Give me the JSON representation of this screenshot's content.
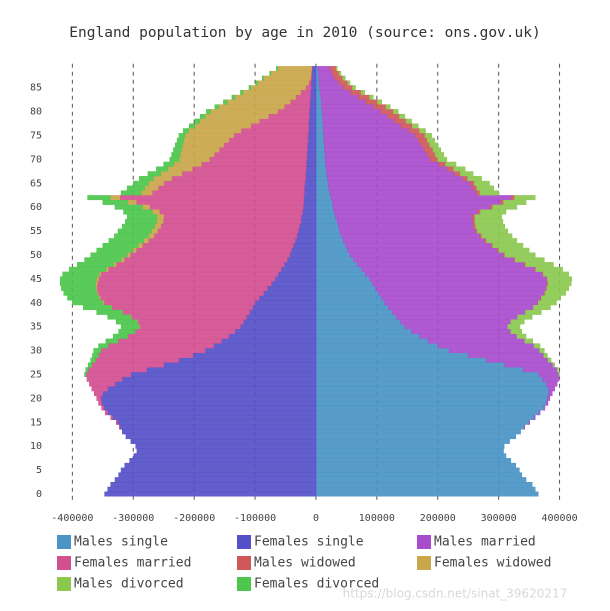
{
  "chart_data": {
    "type": "bar",
    "orientation": "horizontal",
    "barmode": "relative",
    "title": "England population by age in 2010 (source: ons.gov.uk)",
    "categories": [
      "0",
      null,
      null,
      null,
      null,
      "5",
      null,
      null,
      null,
      null,
      "10",
      null,
      null,
      null,
      null,
      "15",
      null,
      null,
      null,
      null,
      "20",
      null,
      null,
      null,
      null,
      "25",
      null,
      null,
      null,
      null,
      "30",
      null,
      null,
      null,
      null,
      "35",
      null,
      null,
      null,
      null,
      "40",
      null,
      null,
      null,
      null,
      "45",
      null,
      null,
      null,
      null,
      "50",
      null,
      null,
      null,
      null,
      "55",
      null,
      null,
      null,
      null,
      "60",
      null,
      null,
      null,
      null,
      "65",
      null,
      null,
      null,
      null,
      "70",
      null,
      null,
      null,
      null,
      "75",
      null,
      null,
      null,
      null,
      "80",
      null,
      null,
      null,
      null,
      "85",
      null,
      null,
      null,
      null
    ],
    "xlim": [
      -440000,
      450000
    ],
    "xticks": [
      -400000,
      -300000,
      -200000,
      -100000,
      0,
      100000,
      200000,
      300000,
      400000
    ],
    "grid": true,
    "series": [
      {
        "name": "Males single",
        "color": "#4a94c6",
        "values": [
          365000,
          360000,
          355000,
          345000,
          338000,
          334000,
          328000,
          320000,
          312000,
          308000,
          309000,
          318000,
          328000,
          336000,
          342000,
          350000,
          358000,
          366000,
          374000,
          378000,
          380000,
          382000,
          382000,
          378000,
          372000,
          366000,
          340000,
          310000,
          280000,
          250000,
          219000,
          200000,
          184000,
          170000,
          157000,
          146000,
          139000,
          132000,
          125000,
          119000,
          113000,
          108000,
          103000,
          98000,
          93000,
          88000,
          81000,
          75000,
          68000,
          62000,
          56000,
          52000,
          49000,
          45000,
          42000,
          39000,
          37000,
          35000,
          32000,
          30000,
          28000,
          27000,
          25000,
          23000,
          21000,
          20000,
          19000,
          18000,
          17000,
          16000,
          15000,
          15000,
          14000,
          14000,
          13000,
          13000,
          12000,
          12000,
          11000,
          11000,
          10000,
          9000,
          9000,
          8000,
          7000,
          6000,
          5000,
          5000,
          4000,
          3000
        ]
      },
      {
        "name": "Females single",
        "color": "#5550c8",
        "values": [
          -347000,
          -342000,
          -337000,
          -330000,
          -324000,
          -320000,
          -314000,
          -306000,
          -299000,
          -294000,
          -296000,
          -304000,
          -312000,
          -318000,
          -322000,
          -326000,
          -334000,
          -342000,
          -348000,
          -352000,
          -353000,
          -350000,
          -342000,
          -330000,
          -318000,
          -304000,
          -278000,
          -250000,
          -225000,
          -202000,
          -182000,
          -168000,
          -155000,
          -143000,
          -133000,
          -124000,
          -119000,
          -114000,
          -109000,
          -104000,
          -100000,
          -93000,
          -86000,
          -80000,
          -73000,
          -67000,
          -62000,
          -57000,
          -52000,
          -47000,
          -43000,
          -40000,
          -37000,
          -34000,
          -31000,
          -29000,
          -27000,
          -25000,
          -24000,
          -22000,
          -21000,
          -20000,
          -20000,
          -19000,
          -19000,
          -18000,
          -17000,
          -17000,
          -16000,
          -16000,
          -15000,
          -15000,
          -14000,
          -14000,
          -13000,
          -13000,
          -12000,
          -12000,
          -12000,
          -11000,
          -11000,
          -10000,
          -10000,
          -9000,
          -9000,
          -8000,
          -8000,
          -7000,
          -7000,
          -6000
        ]
      },
      {
        "name": "Males married",
        "color": "#a84ccc",
        "values": [
          0,
          0,
          0,
          0,
          0,
          0,
          0,
          0,
          0,
          0,
          0,
          0,
          0,
          0,
          1000,
          1000,
          2000,
          2000,
          2000,
          3000,
          4000,
          6000,
          10000,
          18000,
          27000,
          33000,
          56000,
          79000,
          101000,
          124000,
          148000,
          158000,
          159000,
          160000,
          163000,
          169000,
          181000,
          199000,
          219000,
          238000,
          251000,
          261000,
          272000,
          280000,
          287000,
          291000,
          291000,
          284000,
          274000,
          263000,
          252000,
          246000,
          239000,
          232000,
          227000,
          223000,
          222000,
          223000,
          225000,
          236000,
          258000,
          276000,
          296000,
          240000,
          237000,
          233000,
          222000,
          210000,
          199000,
          186000,
          173000,
          168000,
          164000,
          159000,
          155000,
          150000,
          141000,
          128000,
          118000,
          107000,
          97000,
          86000,
          73000,
          62000,
          50000,
          39000,
          33000,
          26000,
          23000,
          20000
        ]
      },
      {
        "name": "Females married",
        "color": "#d24f90",
        "values": [
          0,
          0,
          0,
          0,
          0,
          0,
          0,
          0,
          0,
          0,
          0,
          0,
          0,
          0,
          -1000,
          -2000,
          -3000,
          -4000,
          -4000,
          -5000,
          -7000,
          -14000,
          -26000,
          -42000,
          -58000,
          -74000,
          -96000,
          -118000,
          -137000,
          -155000,
          -171000,
          -173000,
          -170000,
          -166000,
          -164000,
          -165000,
          -174000,
          -189000,
          -208000,
          -231000,
          -248000,
          -261000,
          -272000,
          -280000,
          -286000,
          -290000,
          -291000,
          -284000,
          -276000,
          -268000,
          -262000,
          -255000,
          -248000,
          -241000,
          -235000,
          -231000,
          -228000,
          -226000,
          -226000,
          -235000,
          -252000,
          -275000,
          -302000,
          -250000,
          -240000,
          -232000,
          -220000,
          -203000,
          -187000,
          -172000,
          -160000,
          -152000,
          -145000,
          -137000,
          -130000,
          -122000,
          -111000,
          -95000,
          -81000,
          -67000,
          -52000,
          -42000,
          -32000,
          -24000,
          -16000,
          -9000,
          -4000,
          -2000,
          -1000,
          -1000
        ]
      },
      {
        "name": "Males widowed",
        "color": "#d05858",
        "values": [
          0,
          0,
          0,
          0,
          0,
          0,
          0,
          0,
          0,
          0,
          0,
          0,
          0,
          0,
          0,
          0,
          0,
          0,
          0,
          0,
          0,
          0,
          0,
          0,
          0,
          0,
          0,
          0,
          0,
          0,
          0,
          0,
          0,
          0,
          0,
          0,
          0,
          0,
          0,
          0,
          1000,
          1000,
          1000,
          1000,
          1000,
          1000,
          1000,
          2000,
          2000,
          2000,
          2000,
          2000,
          2000,
          3000,
          3000,
          3000,
          3000,
          3000,
          4000,
          4000,
          4000,
          5000,
          5000,
          6000,
          6000,
          7000,
          8000,
          9000,
          10000,
          11000,
          12000,
          13000,
          14000,
          14000,
          15000,
          16000,
          17000,
          18000,
          19000,
          19000,
          20000,
          20000,
          19000,
          18000,
          17000,
          15000,
          14000,
          13000,
          11000,
          10000
        ]
      },
      {
        "name": "Females widowed",
        "color": "#c9a64a",
        "values": [
          0,
          0,
          0,
          0,
          0,
          0,
          0,
          0,
          0,
          0,
          0,
          0,
          0,
          0,
          0,
          0,
          0,
          0,
          0,
          0,
          0,
          0,
          0,
          0,
          0,
          0,
          0,
          0,
          0,
          0,
          0,
          0,
          0,
          0,
          0,
          -1000,
          -1000,
          -1000,
          -1000,
          -1000,
          -2000,
          -2000,
          -2000,
          -2000,
          -3000,
          -3000,
          -3000,
          -4000,
          -4000,
          -5000,
          -5000,
          -6000,
          -7000,
          -8000,
          -9000,
          -10000,
          -10000,
          -11000,
          -11000,
          -12000,
          -12000,
          -14000,
          -16000,
          -18000,
          -22000,
          -25000,
          -30000,
          -35000,
          -40000,
          -45000,
          -50000,
          -56000,
          -62000,
          -68000,
          -74000,
          -80000,
          -86000,
          -92000,
          -98000,
          -104000,
          -110000,
          -108000,
          -104000,
          -100000,
          -95000,
          -90000,
          -84000,
          -77000,
          -66000,
          -56000
        ]
      },
      {
        "name": "Males divorced",
        "color": "#8cc850",
        "values": [
          0,
          0,
          0,
          0,
          0,
          0,
          0,
          0,
          0,
          0,
          0,
          0,
          0,
          0,
          0,
          0,
          0,
          0,
          0,
          0,
          0,
          0,
          0,
          0,
          0,
          1000,
          2000,
          3000,
          5000,
          6000,
          8000,
          10000,
          13000,
          15000,
          18000,
          20000,
          22000,
          24000,
          26000,
          28000,
          30000,
          32000,
          34000,
          36000,
          38000,
          40000,
          42000,
          44000,
          46000,
          48000,
          50000,
          50000,
          50000,
          50000,
          50000,
          50000,
          48000,
          46000,
          44000,
          42000,
          40000,
          37000,
          34000,
          31000,
          28000,
          25000,
          23000,
          21000,
          19000,
          17000,
          15000,
          14000,
          13000,
          13000,
          12000,
          11000,
          10000,
          10000,
          9000,
          9000,
          8000,
          7000,
          7000,
          6000,
          6000,
          5000,
          4000,
          4000,
          3000,
          2000
        ]
      },
      {
        "name": "Females divorced",
        "color": "#4cc64c",
        "values": [
          0,
          0,
          0,
          0,
          0,
          0,
          0,
          0,
          0,
          0,
          0,
          0,
          0,
          0,
          0,
          0,
          0,
          0,
          0,
          0,
          0,
          0,
          0,
          0,
          0,
          -2000,
          -4000,
          -6000,
          -8000,
          -10000,
          -12000,
          -16000,
          -20000,
          -24000,
          -27000,
          -30000,
          -34000,
          -38000,
          -42000,
          -46000,
          -50000,
          -52000,
          -54000,
          -56000,
          -58000,
          -60000,
          -60000,
          -60000,
          -60000,
          -60000,
          -60000,
          -59000,
          -58000,
          -57000,
          -56000,
          -55000,
          -53000,
          -51000,
          -49000,
          -47000,
          -45000,
          -41000,
          -37000,
          -33000,
          -29000,
          -25000,
          -23000,
          -21000,
          -19000,
          -17000,
          -15000,
          -14000,
          -13000,
          -12000,
          -11000,
          -10000,
          -9000,
          -9000,
          -8000,
          -8000,
          -7000,
          -6000,
          -6000,
          -5000,
          -4000,
          -3000,
          -3000,
          -2000,
          -2000,
          -2000
        ]
      }
    ]
  },
  "watermark": "https://blog.csdn.net/sinat_39620217"
}
